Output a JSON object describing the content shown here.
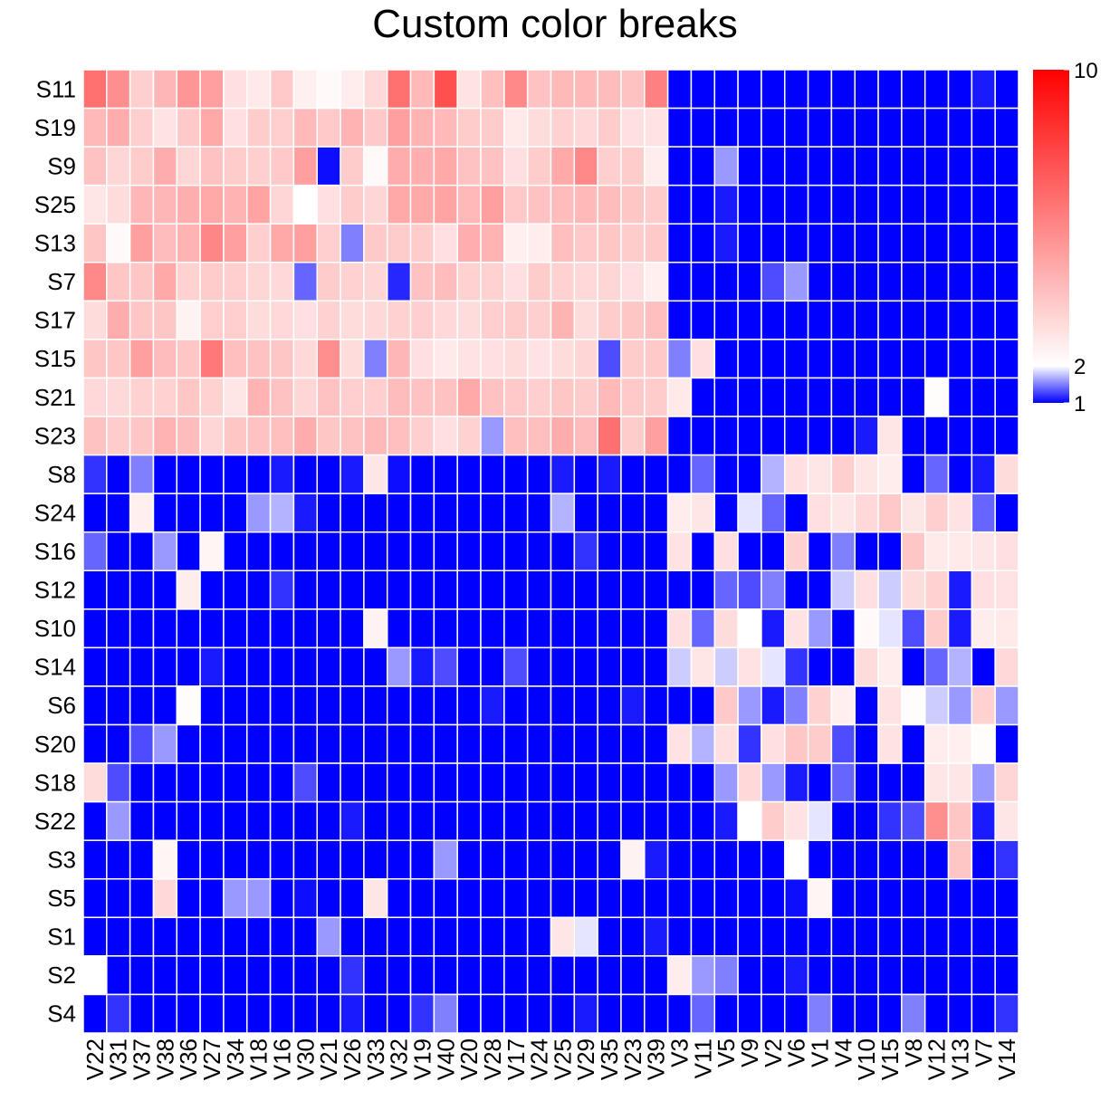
{
  "chart_data": {
    "type": "heatmap",
    "title": "Custom color breaks",
    "rows": [
      "S11",
      "S19",
      "S9",
      "S25",
      "S13",
      "S7",
      "S17",
      "S15",
      "S21",
      "S23",
      "S8",
      "S24",
      "S16",
      "S12",
      "S10",
      "S14",
      "S6",
      "S20",
      "S18",
      "S22",
      "S3",
      "S5",
      "S1",
      "S2",
      "S4"
    ],
    "columns": [
      "V22",
      "V31",
      "V37",
      "V38",
      "V36",
      "V27",
      "V34",
      "V18",
      "V16",
      "V30",
      "V21",
      "V26",
      "V33",
      "V32",
      "V19",
      "V40",
      "V20",
      "V28",
      "V17",
      "V24",
      "V25",
      "V29",
      "V35",
      "V23",
      "V39",
      "V3",
      "V11",
      "V5",
      "V9",
      "V2",
      "V6",
      "V1",
      "V4",
      "V10",
      "V15",
      "V8",
      "V12",
      "V13",
      "V7",
      "V14"
    ],
    "values": [
      [
        6.5,
        5.5,
        3.5,
        4.3,
        5.3,
        5.0,
        3.0,
        2.7,
        3.7,
        2.5,
        2.2,
        2.6,
        3.2,
        6.5,
        4.2,
        7.5,
        2.9,
        4.0,
        5.7,
        3.9,
        4.2,
        4.2,
        4.1,
        3.9,
        6.0,
        1,
        1,
        1,
        1,
        1,
        1,
        1,
        1,
        1,
        1,
        1,
        1,
        1,
        1.1,
        1
      ],
      [
        4.2,
        4.6,
        3.5,
        2.9,
        3.7,
        4.7,
        3.0,
        3.6,
        3.5,
        4.2,
        3.7,
        4.4,
        3.7,
        5.0,
        4.4,
        4.2,
        3.6,
        3.6,
        2.7,
        3.1,
        3.4,
        3.2,
        3.6,
        3.0,
        2.9,
        1,
        1,
        1,
        1,
        1,
        1,
        1,
        1,
        1,
        1,
        1,
        1,
        1,
        1,
        1
      ],
      [
        3.9,
        3.3,
        3.6,
        4.6,
        3.3,
        3.9,
        3.6,
        3.5,
        3.7,
        5.0,
        1.05,
        3.6,
        2.2,
        4.6,
        4.5,
        4.7,
        3.9,
        3.9,
        3.0,
        3.6,
        4.7,
        5.7,
        3.5,
        3.6,
        2.6,
        1,
        1,
        1.6,
        1,
        1,
        1,
        1,
        1,
        1,
        1,
        1,
        1,
        1,
        1,
        1
      ],
      [
        2.8,
        3.1,
        4.3,
        4.3,
        4.5,
        4.7,
        4.4,
        4.9,
        3.3,
        2.0,
        3.0,
        3.6,
        3.3,
        4.7,
        4.7,
        4.9,
        4.2,
        5.0,
        3.7,
        3.9,
        4.1,
        4.2,
        4.1,
        3.8,
        3.6,
        1,
        1,
        1.1,
        1,
        1,
        1,
        1,
        1,
        1,
        1,
        1,
        1,
        1,
        1,
        1
      ],
      [
        3.8,
        2.2,
        5.0,
        4.1,
        4.4,
        5.8,
        5.0,
        3.5,
        4.7,
        5.0,
        3.5,
        1.5,
        3.7,
        3.6,
        3.6,
        3.0,
        4.5,
        4.4,
        2.5,
        2.6,
        4.0,
        3.7,
        3.8,
        3.6,
        3.7,
        1,
        1,
        1.1,
        1,
        1,
        1,
        1,
        1,
        1,
        1,
        1,
        1,
        1,
        1,
        1
      ],
      [
        5.7,
        3.8,
        3.8,
        4.7,
        3.4,
        3.6,
        3.5,
        3.3,
        3.2,
        1.4,
        3.6,
        3.4,
        3.3,
        1.15,
        3.9,
        4.1,
        3.4,
        3.4,
        3.0,
        3.6,
        3.4,
        3.2,
        3.3,
        3.0,
        2.5,
        1,
        1,
        1,
        1,
        1.3,
        1.6,
        1,
        1,
        1,
        1,
        1,
        1,
        1,
        1,
        1
      ],
      [
        3.1,
        4.6,
        3.8,
        3.8,
        2.4,
        3.5,
        3.5,
        3.1,
        3.2,
        3.0,
        3.4,
        3.1,
        3.2,
        3.4,
        3.5,
        3.2,
        3.1,
        3.5,
        3.6,
        3.5,
        4.4,
        3.1,
        3.6,
        3.8,
        4.0,
        1,
        1,
        1,
        1,
        1,
        1,
        1,
        1,
        1,
        1,
        1,
        1,
        1,
        1,
        1
      ],
      [
        3.8,
        3.8,
        5.0,
        4.1,
        3.8,
        6.2,
        4.0,
        3.9,
        3.8,
        3.2,
        5.5,
        3.1,
        1.5,
        4.3,
        3.0,
        2.7,
        2.9,
        3.0,
        3.1,
        2.9,
        3.1,
        3.3,
        1.3,
        3.6,
        3.7,
        1.5,
        3.0,
        1,
        1,
        1,
        1,
        1,
        1,
        1,
        1,
        1,
        1,
        1,
        1,
        1
      ],
      [
        3.2,
        3.2,
        3.4,
        3.4,
        3.8,
        3.4,
        2.8,
        4.4,
        3.9,
        3.3,
        3.9,
        3.5,
        3.5,
        4.1,
        3.9,
        3.9,
        4.7,
        3.9,
        3.7,
        3.5,
        3.8,
        3.6,
        4.2,
        3.7,
        3.6,
        2.7,
        1,
        1,
        1,
        1,
        1,
        1,
        1,
        1,
        1,
        1,
        2.1,
        1,
        1,
        1
      ],
      [
        3.9,
        3.6,
        3.8,
        4.4,
        4.1,
        3.3,
        3.8,
        3.9,
        4.0,
        4.6,
        3.8,
        3.9,
        4.2,
        4.0,
        3.5,
        3.0,
        3.4,
        1.6,
        4.0,
        4.0,
        4.6,
        4.1,
        6.5,
        3.6,
        5.0,
        1,
        1,
        1,
        1,
        1,
        1,
        1,
        1,
        1.1,
        2.8,
        1,
        1,
        1,
        1,
        1
      ],
      [
        1.2,
        1,
        1.5,
        1,
        1,
        1,
        1,
        1,
        1.1,
        1,
        1,
        1.1,
        2.8,
        1.05,
        1,
        1,
        1,
        1,
        1,
        1,
        1.1,
        1,
        1.1,
        1,
        1,
        1,
        1.4,
        1,
        1,
        1.7,
        3.0,
        2.8,
        3.5,
        2.8,
        2.6,
        1,
        1.4,
        1,
        1.1,
        3.1
      ],
      [
        1,
        1,
        2.5,
        1,
        1,
        1,
        1,
        1.6,
        1.7,
        1.1,
        1,
        1,
        1,
        1,
        1,
        1,
        1,
        1,
        1,
        1,
        1.7,
        1,
        1,
        1,
        1,
        2.6,
        2.8,
        1,
        1.9,
        1.4,
        1,
        3.0,
        2.8,
        3.2,
        3.7,
        2.8,
        3.5,
        2.9,
        1.4,
        1
      ],
      [
        1.4,
        1,
        1,
        1.6,
        1,
        2.3,
        1,
        1,
        1,
        1,
        1,
        1,
        1,
        1,
        1,
        1,
        1,
        1,
        1,
        1,
        1,
        1.2,
        1,
        1,
        1,
        2.9,
        1,
        3.0,
        1,
        1,
        3.4,
        1,
        1.5,
        1,
        1,
        3.8,
        2.7,
        2.7,
        2.8,
        3.0
      ],
      [
        1,
        1,
        1,
        1,
        2.6,
        1,
        1,
        1,
        1.2,
        1,
        1,
        1,
        1,
        1,
        1,
        1,
        1,
        1,
        1,
        1,
        1,
        1,
        1,
        1,
        1,
        1,
        1,
        1.4,
        1.3,
        1.5,
        1,
        1,
        1.8,
        3.0,
        1.8,
        3.1,
        3.4,
        1.1,
        3.0,
        2.9
      ],
      [
        1,
        1,
        1,
        1,
        1,
        1,
        1,
        1,
        1,
        1,
        1,
        1,
        2.4,
        1,
        1,
        1,
        1,
        1,
        1,
        1,
        1,
        1,
        1,
        1,
        1,
        3.0,
        1.4,
        3.1,
        2.0,
        1.1,
        2.9,
        1.6,
        1,
        2.2,
        1.9,
        1.3,
        3.6,
        1.1,
        2.6,
        2.7
      ],
      [
        1,
        1,
        1,
        1,
        1,
        1.1,
        1,
        1,
        1,
        1,
        1,
        1,
        1,
        1.6,
        1.1,
        1.3,
        1,
        1,
        1.3,
        1,
        1,
        1,
        1,
        1,
        1,
        1.8,
        2.8,
        1.8,
        2.9,
        1.9,
        1.2,
        1,
        1,
        3.1,
        2.6,
        1,
        1.4,
        1.7,
        1,
        3.2
      ],
      [
        1,
        1,
        1,
        1,
        2.1,
        1,
        1,
        1,
        1,
        1,
        1,
        1,
        1,
        1,
        1,
        1,
        1,
        1.1,
        1,
        1,
        1,
        1,
        1,
        1.1,
        1,
        1,
        1,
        3.7,
        1.6,
        1.1,
        1.5,
        3.4,
        2.5,
        1,
        2.9,
        2.1,
        1.8,
        1.6,
        3.4,
        1.6
      ],
      [
        1,
        1,
        1.3,
        1.6,
        1,
        1,
        1,
        1,
        1,
        1,
        1,
        1,
        1,
        1,
        1,
        1,
        1,
        1,
        1,
        1,
        1,
        1,
        1,
        1,
        1,
        2.9,
        1.7,
        3.0,
        1.2,
        3.0,
        3.8,
        3.6,
        1.3,
        1,
        2.9,
        1,
        2.6,
        2.5,
        2.1,
        1
      ],
      [
        3.1,
        1.3,
        1,
        1,
        1,
        1,
        1,
        1,
        1,
        1.3,
        1,
        1,
        1,
        1,
        1,
        1,
        1,
        1,
        1,
        1,
        1,
        1,
        1,
        1,
        1,
        1,
        1,
        1.6,
        3.2,
        1.6,
        1.1,
        1,
        1.4,
        1,
        1,
        1,
        2.8,
        2.8,
        1.6,
        3.3
      ],
      [
        1,
        1.6,
        1,
        1,
        1,
        1,
        1,
        1,
        1,
        1,
        1,
        1.1,
        1,
        1,
        1,
        1,
        1,
        1,
        1,
        1,
        1,
        1,
        1,
        1,
        1,
        1,
        1,
        1.1,
        2.0,
        3.6,
        2.9,
        1.9,
        1,
        1,
        1.2,
        1.3,
        5.5,
        3.8,
        1.1,
        2.8
      ],
      [
        1,
        1,
        1,
        2.3,
        1,
        1,
        1,
        1,
        1,
        1,
        1,
        1,
        1,
        1,
        1,
        1.6,
        1,
        1,
        1,
        1,
        1,
        1,
        1,
        2.4,
        1.1,
        1,
        1,
        1,
        1,
        1,
        2.0,
        1,
        1,
        1,
        1,
        1,
        1,
        3.8,
        1,
        1.2
      ],
      [
        1,
        1,
        1,
        3.2,
        1,
        1,
        1.6,
        1.6,
        1,
        1.05,
        1,
        1,
        2.8,
        1,
        1,
        1,
        1,
        1,
        1,
        1,
        1,
        1,
        1,
        1,
        1,
        1,
        1,
        1,
        1,
        1,
        1.05,
        2.3,
        1,
        1,
        1,
        1,
        1,
        1,
        1,
        1
      ],
      [
        1,
        1,
        1,
        1,
        1,
        1,
        1,
        1,
        1,
        1,
        1.6,
        1,
        1,
        1,
        1,
        1,
        1,
        1,
        1,
        1,
        2.8,
        1.9,
        1,
        1,
        1.1,
        1,
        1,
        1,
        1,
        1,
        1,
        1,
        1,
        1,
        1,
        1,
        1,
        1,
        1,
        1
      ],
      [
        2.0,
        1,
        1,
        1,
        1,
        1,
        1,
        1,
        1,
        1,
        1,
        1.2,
        1,
        1,
        1,
        1,
        1,
        1,
        1,
        1,
        1,
        1,
        1,
        1,
        1,
        2.6,
        1.6,
        1.5,
        1,
        1,
        1.1,
        1,
        1,
        1,
        1,
        1,
        1,
        1,
        1,
        1
      ],
      [
        1,
        1.2,
        1,
        1,
        1,
        1,
        1,
        1,
        1,
        1,
        1,
        1.1,
        1,
        1,
        1.2,
        1.5,
        1,
        1,
        1,
        1,
        1,
        1.1,
        1,
        1,
        1,
        1,
        1.4,
        1,
        1,
        1,
        1,
        1.5,
        1,
        1,
        1,
        1.5,
        1,
        1,
        1,
        1.2
      ]
    ],
    "color_scale": {
      "breaks": [
        1,
        2,
        10
      ],
      "colors": [
        "#0000ff",
        "#ffffff",
        "#ff0000"
      ],
      "legend_labels": [
        "1",
        "2",
        "10"
      ],
      "legend_position": "top-right"
    }
  }
}
